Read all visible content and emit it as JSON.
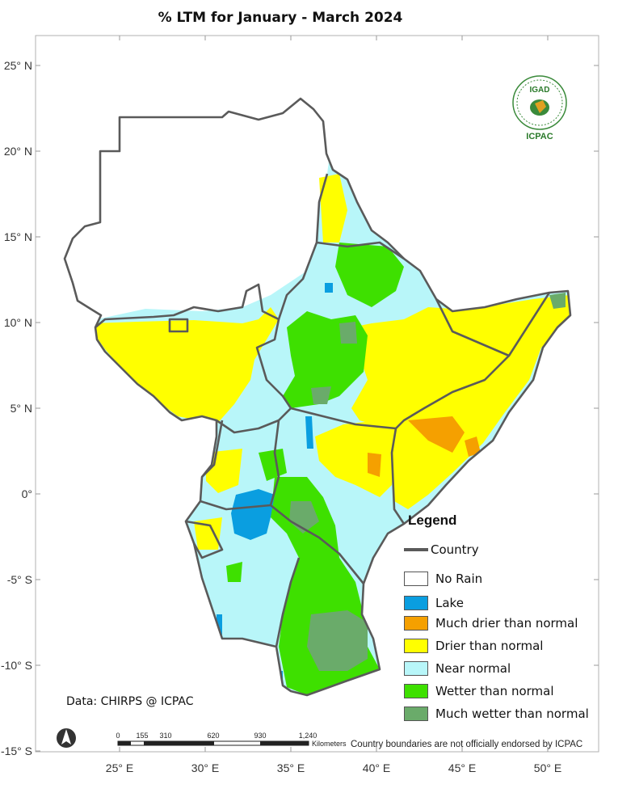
{
  "map": {
    "title": "% LTM  for   January - March 2024",
    "lat_labels": [
      "25° N",
      "20° N",
      "15° N",
      "10° N",
      "5° N",
      "0°",
      "-5° S",
      "-10° S",
      "-15° S"
    ],
    "lon_labels": [
      "25° E",
      "30° E",
      "35° E",
      "40° E",
      "45° E",
      "50° E"
    ],
    "credit": "Data: CHIRPS @ ICPAC",
    "disclaimer": "Country boundaries are not officially endorsed by ICPAC",
    "scale_bar": {
      "ticks": [
        "0",
        "155",
        "310",
        "620",
        "930",
        "1,240"
      ],
      "unit": "Kilometers"
    },
    "logo": {
      "top_text": "IGAD",
      "bottom_text": "ICPAC"
    }
  },
  "legend": {
    "title": "Legend",
    "country_label": "Country",
    "items": [
      {
        "label": "No Rain",
        "color": "#ffffff"
      },
      {
        "label": "Lake",
        "color": "#0a9ee0"
      },
      {
        "label": "Much drier than normal",
        "color": "#f5a000"
      },
      {
        "label": "Drier than normal",
        "color": "#ffff00"
      },
      {
        "label": "Near normal",
        "color": "#b8f6f9"
      },
      {
        "label": "Wetter than normal",
        "color": "#3ee000"
      },
      {
        "label": "Much wetter than normal",
        "color": "#6aab6a"
      }
    ]
  }
}
